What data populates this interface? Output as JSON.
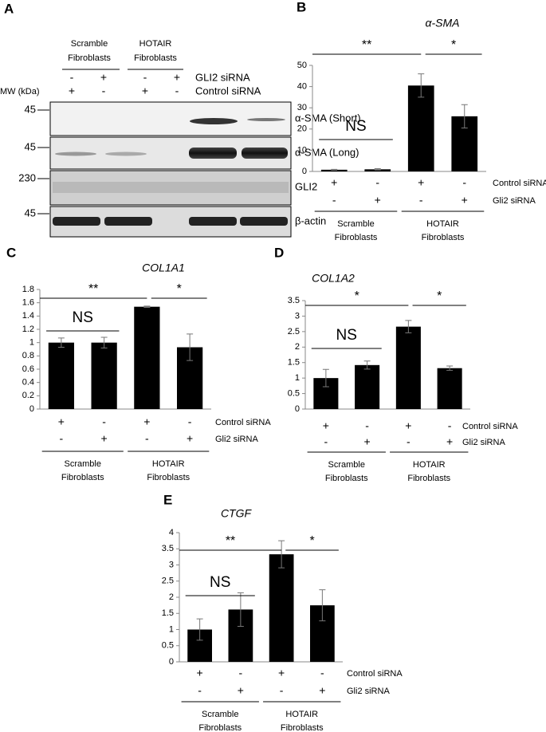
{
  "blot": {
    "panel": "A",
    "mw_label": "MW (kDa)",
    "groups": [
      [
        "Scramble",
        "Fibroblasts"
      ],
      [
        "HOTAIR",
        "Fibroblasts"
      ]
    ],
    "treatments": [
      {
        "name": "GLI2 siRNA",
        "signs": [
          "-",
          "+",
          "-",
          "+"
        ]
      },
      {
        "name": "Control siRNA",
        "signs": [
          "+",
          "-",
          "+",
          "-"
        ]
      }
    ],
    "rows": [
      {
        "mw": "45",
        "label": "α-SMA (Short)"
      },
      {
        "mw": "45",
        "label": "α-SMA (Long)"
      },
      {
        "mw": "230",
        "label": "GLI2"
      },
      {
        "mw": "45",
        "label": "β-actin"
      }
    ]
  },
  "chart_data": [
    {
      "type": "bar",
      "panel": "B",
      "title": "α-SMA",
      "color": "#000000",
      "values": [
        0.8,
        1.0,
        40.5,
        26
      ],
      "errors": [
        0.2,
        0.3,
        5.5,
        5.5
      ],
      "ylim": [
        0,
        50
      ],
      "yticks": [
        0,
        10,
        20,
        30,
        40,
        50
      ],
      "treatments": [
        {
          "name": "Control siRNA",
          "signs": [
            "+",
            "-",
            "+",
            "-"
          ]
        },
        {
          "name": "Gli2 siRNA",
          "signs": [
            "-",
            "+",
            "-",
            "+"
          ]
        }
      ],
      "groups": [
        [
          "Scramble",
          "Fibroblasts"
        ],
        [
          "HOTAIR",
          "Fibroblasts"
        ]
      ],
      "annotations": [
        "NS",
        "**",
        "*"
      ]
    },
    {
      "type": "bar",
      "panel": "C",
      "title": "COL1A1",
      "color": "#000000",
      "values": [
        1.0,
        1.0,
        1.54,
        0.93
      ],
      "errors": [
        0.07,
        0.08,
        0.01,
        0.2
      ],
      "ylim": [
        0,
        1.8
      ],
      "yticks": [
        0,
        0.2,
        0.4,
        0.6,
        0.8,
        1,
        1.2,
        1.4,
        1.6,
        1.8
      ],
      "treatments": [
        {
          "name": "Control siRNA",
          "signs": [
            "+",
            "-",
            "+",
            "-"
          ]
        },
        {
          "name": "Gli2 siRNA",
          "signs": [
            "-",
            "+",
            "-",
            "+"
          ]
        }
      ],
      "groups": [
        [
          "Scramble",
          "Fibroblasts"
        ],
        [
          "HOTAIR",
          "Fibroblasts"
        ]
      ],
      "annotations": [
        "NS",
        "**",
        "*"
      ]
    },
    {
      "type": "bar",
      "panel": "D",
      "title": "COL1A2",
      "color": "#000000",
      "values": [
        1.0,
        1.42,
        2.66,
        1.32
      ],
      "errors": [
        0.28,
        0.13,
        0.2,
        0.07
      ],
      "ylim": [
        0,
        3.5
      ],
      "yticks": [
        0,
        0.5,
        1,
        1.5,
        2,
        2.5,
        3,
        3.5
      ],
      "treatments": [
        {
          "name": "Control siRNA",
          "signs": [
            "+",
            "-",
            "+",
            "-"
          ]
        },
        {
          "name": "Gli2 siRNA",
          "signs": [
            "-",
            "+",
            "-",
            "+"
          ]
        }
      ],
      "groups": [
        [
          "Scramble",
          "Fibroblasts"
        ],
        [
          "HOTAIR",
          "Fibroblasts"
        ]
      ],
      "annotations": [
        "NS",
        "*",
        "*"
      ]
    },
    {
      "type": "bar",
      "panel": "E",
      "title": "CTGF",
      "color": "#000000",
      "values": [
        1.0,
        1.62,
        3.33,
        1.75
      ],
      "errors": [
        0.33,
        0.52,
        0.42,
        0.48
      ],
      "ylim": [
        0,
        4
      ],
      "yticks": [
        0,
        0.5,
        1,
        1.5,
        2,
        2.5,
        3,
        3.5,
        4
      ],
      "treatments": [
        {
          "name": "Control siRNA",
          "signs": [
            "+",
            "-",
            "+",
            "-"
          ]
        },
        {
          "name": "Gli2 siRNA",
          "signs": [
            "-",
            "+",
            "-",
            "+"
          ]
        }
      ],
      "groups": [
        [
          "Scramble",
          "Fibroblasts"
        ],
        [
          "HOTAIR",
          "Fibroblasts"
        ]
      ],
      "annotations": [
        "NS",
        "**",
        "*"
      ]
    }
  ]
}
